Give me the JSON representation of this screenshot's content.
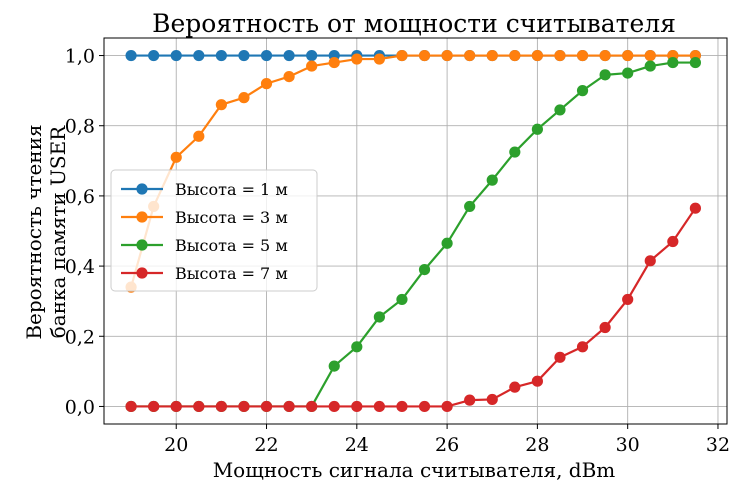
{
  "chart_data": {
    "type": "line",
    "title": "Вероятность от мощности считывателя",
    "xlabel": "Мощность сигнала считывателя, dBm",
    "ylabel_lines": [
      "Вероятность чтения",
      "банка памяти USER"
    ],
    "xlim": [
      18.4,
      32.2
    ],
    "ylim": [
      -0.05,
      1.05
    ],
    "xticks": [
      20,
      22,
      24,
      26,
      28,
      30,
      32
    ],
    "xtick_labels": [
      "20",
      "22",
      "24",
      "26",
      "28",
      "30",
      "32"
    ],
    "yticks": [
      0.0,
      0.2,
      0.4,
      0.6,
      0.8,
      1.0
    ],
    "ytick_labels": [
      "0,0",
      "0,2",
      "0,4",
      "0,6",
      "0,8",
      "1,0"
    ],
    "grid": true,
    "legend_position": "center-left",
    "x": [
      19,
      19.5,
      20,
      20.5,
      21,
      21.5,
      22,
      22.5,
      23,
      23.5,
      24,
      24.5,
      25,
      25.5,
      26,
      26.5,
      27,
      27.5,
      28,
      28.5,
      29,
      29.5,
      30,
      30.5,
      31,
      31.5
    ],
    "series": [
      {
        "name": "Высота = 1 м",
        "color": "#1f77b4",
        "values": [
          1.0,
          1.0,
          1.0,
          1.0,
          1.0,
          1.0,
          1.0,
          1.0,
          1.0,
          1.0,
          1.0,
          1.0,
          1.0,
          1.0,
          1.0,
          1.0,
          1.0,
          1.0,
          1.0,
          1.0,
          1.0,
          1.0,
          1.0,
          1.0,
          1.0,
          1.0
        ]
      },
      {
        "name": "Высота = 3 м",
        "color": "#ff7f0e",
        "values": [
          0.34,
          0.57,
          0.71,
          0.77,
          0.86,
          0.88,
          0.92,
          0.94,
          0.97,
          0.98,
          0.99,
          0.99,
          1.0,
          1.0,
          1.0,
          1.0,
          1.0,
          1.0,
          1.0,
          1.0,
          1.0,
          1.0,
          1.0,
          1.0,
          1.0,
          1.0
        ]
      },
      {
        "name": "Высота = 5 м",
        "color": "#2ca02c",
        "values": [
          0.0,
          0.0,
          0.0,
          0.0,
          0.0,
          0.0,
          0.0,
          0.0,
          0.0,
          0.115,
          0.17,
          0.255,
          0.305,
          0.39,
          0.465,
          0.57,
          0.645,
          0.725,
          0.79,
          0.845,
          0.9,
          0.945,
          0.95,
          0.97,
          0.98,
          0.98
        ]
      },
      {
        "name": "Высота = 7 м",
        "color": "#d62728",
        "values": [
          0.0,
          0.0,
          0.0,
          0.0,
          0.0,
          0.0,
          0.0,
          0.0,
          0.0,
          0.0,
          0.0,
          0.0,
          0.0,
          0.0,
          0.0,
          0.018,
          0.02,
          0.055,
          0.072,
          0.14,
          0.17,
          0.225,
          0.305,
          0.415,
          0.47,
          0.565
        ]
      }
    ]
  }
}
